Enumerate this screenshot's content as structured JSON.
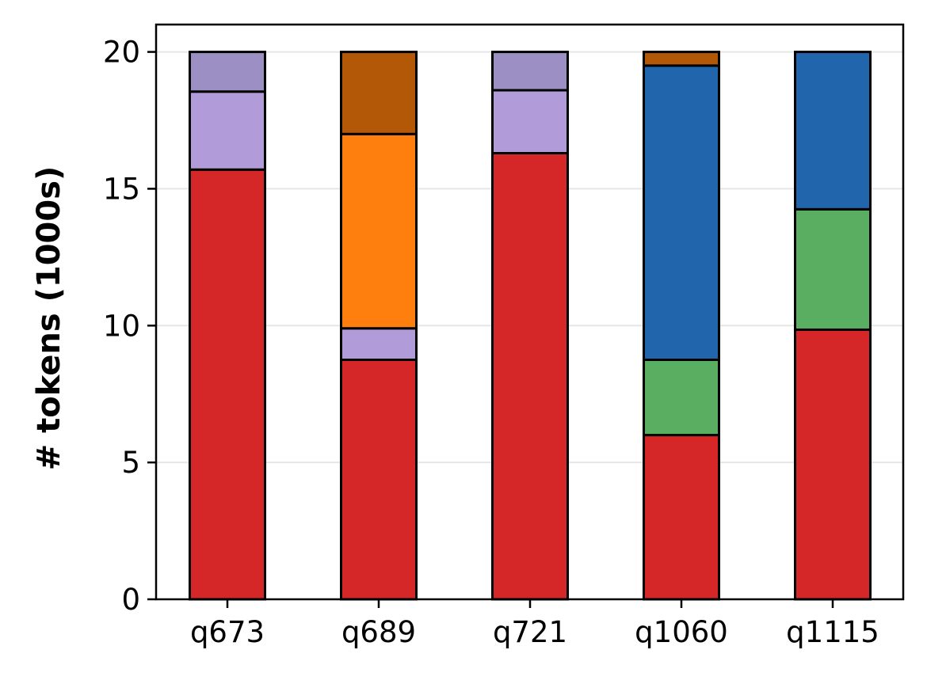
{
  "chart_data": {
    "type": "bar",
    "stacked": true,
    "title": "",
    "xlabel": "",
    "ylabel": "# tokens (1000s)",
    "ylim": [
      0,
      21
    ],
    "yticks": [
      0,
      5,
      10,
      15,
      20
    ],
    "grid": "horizontal",
    "categories": [
      "q673",
      "q689",
      "q721",
      "q1060",
      "q1115"
    ],
    "series": [
      {
        "color": "#d62728",
        "values": [
          15.7,
          8.75,
          16.3,
          6.0,
          9.85
        ]
      },
      {
        "color": "#5aae61",
        "values": [
          0,
          0,
          0,
          2.75,
          4.4
        ]
      },
      {
        "color": "#2166ac",
        "values": [
          0,
          0,
          0,
          10.75,
          5.75
        ]
      },
      {
        "color": "#b19cd9",
        "values": [
          2.85,
          1.15,
          2.3,
          0,
          0
        ]
      },
      {
        "color": "#ff7f0e",
        "values": [
          0,
          7.1,
          0,
          0,
          0
        ]
      },
      {
        "color": "#9b8fc4",
        "values": [
          1.45,
          0,
          1.4,
          0,
          0
        ]
      },
      {
        "color": "#b35806",
        "values": [
          0,
          3.0,
          0,
          0.5,
          0
        ]
      }
    ]
  }
}
